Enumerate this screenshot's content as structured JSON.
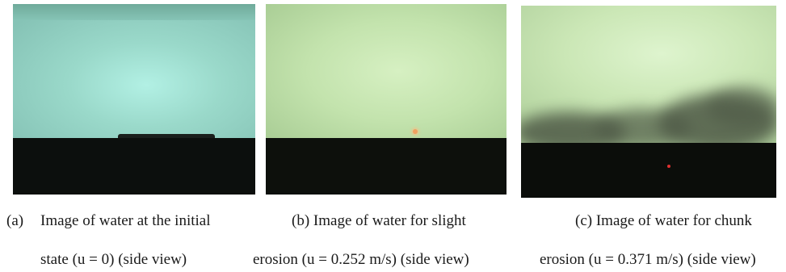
{
  "figure": {
    "panels": [
      {
        "id": "a",
        "label": "(a)",
        "caption_line1": "Image of water at the initial",
        "caption_line2": "state (u = 0) (side view)"
      },
      {
        "id": "b",
        "caption_line1": "(b) Image of water for slight",
        "caption_line2": "erosion (u = 0.252 m/s) (side view)"
      },
      {
        "id": "c",
        "caption_line1": "(c) Image of water for chunk",
        "caption_line2": "erosion (u = 0.371 m/s) (side view)"
      }
    ]
  },
  "colors": {
    "water_initial": "#9ad9ca",
    "water_slight": "#c3e3ad",
    "water_chunk": "#cbe7b6",
    "sediment_bed": "#0c0f0d",
    "suspended_cloud": "#4f5a47"
  }
}
